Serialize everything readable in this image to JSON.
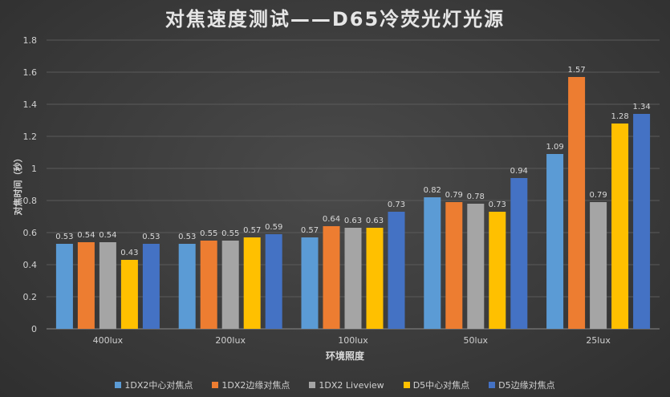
{
  "chart_data": {
    "type": "bar",
    "title": "对焦速度测试——D65冷荧光灯光源",
    "xlabel": "环境照度",
    "ylabel": "对焦时间（秒）",
    "ylim": [
      0,
      1.8
    ],
    "yticks": [
      "0",
      "0.2",
      "0.4",
      "0.6",
      "0.8",
      "1",
      "1.2",
      "1.4",
      "1.6",
      "1.8"
    ],
    "categories": [
      "400lux",
      "200lux",
      "100lux",
      "50lux",
      "25lux"
    ],
    "grid": true,
    "legend_position": "bottom",
    "series": [
      {
        "name": "1DX2中心对焦点",
        "color": "#5b9bd5",
        "values": [
          0.53,
          0.53,
          0.57,
          0.82,
          1.09
        ]
      },
      {
        "name": "1DX2边缘对焦点",
        "color": "#ed7d31",
        "values": [
          0.54,
          0.55,
          0.64,
          0.79,
          1.57
        ]
      },
      {
        "name": "1DX2 Liveview",
        "color": "#a5a5a5",
        "values": [
          0.54,
          0.55,
          0.63,
          0.78,
          0.79
        ]
      },
      {
        "name": "D5中心对焦点",
        "color": "#ffc000",
        "values": [
          0.43,
          0.57,
          0.63,
          0.73,
          1.28
        ]
      },
      {
        "name": "D5边缘对焦点",
        "color": "#4472c4",
        "values": [
          0.53,
          0.59,
          0.73,
          0.94,
          1.34
        ]
      }
    ]
  }
}
